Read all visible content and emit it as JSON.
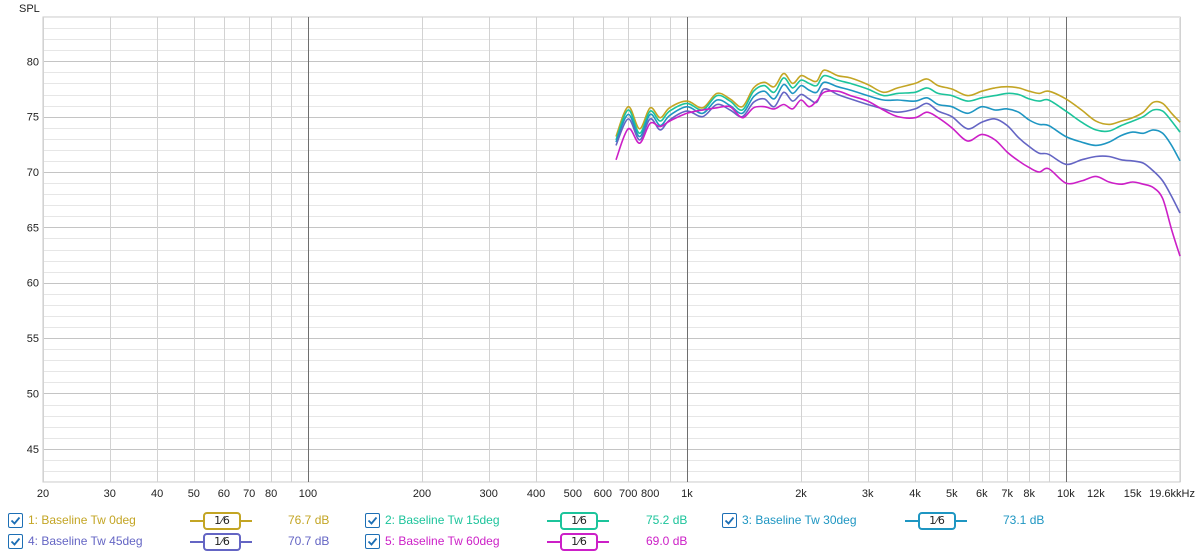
{
  "chart_data": {
    "type": "line",
    "ylabel": "SPL",
    "xlabel_unit": "kHz",
    "x_scale": "log",
    "xlim": [
      20,
      20000
    ],
    "ylim": [
      42,
      84
    ],
    "y_ticks": [
      45,
      50,
      55,
      60,
      65,
      70,
      75,
      80
    ],
    "y_tick_labels": [
      "45",
      "50",
      "55",
      "60",
      "65",
      "70",
      "75",
      "80"
    ],
    "x_ticks": [
      20,
      30,
      40,
      50,
      60,
      70,
      80,
      100,
      200,
      300,
      400,
      500,
      600,
      700,
      800,
      1000,
      2000,
      3000,
      4000,
      5000,
      6000,
      7000,
      8000,
      10000,
      12000,
      15000,
      19600
    ],
    "x_tick_labels": [
      "20",
      "30",
      "40",
      "50",
      "60",
      "70",
      "80",
      "100",
      "200",
      "300",
      "400",
      "500",
      "600",
      "700",
      "800",
      "1k",
      "2k",
      "3k",
      "4k",
      "5k",
      "6k",
      "7k",
      "8k",
      "10k",
      "12k",
      "15k",
      "19.6k"
    ],
    "grid": true,
    "x": [
      650,
      700,
      750,
      800,
      850,
      900,
      1000,
      1100,
      1200,
      1300,
      1400,
      1500,
      1600,
      1700,
      1800,
      1900,
      2000,
      2100,
      2200,
      2300,
      2500,
      2700,
      3000,
      3300,
      3600,
      4000,
      4300,
      4600,
      5000,
      5500,
      6000,
      6500,
      7000,
      7500,
      8000,
      8500,
      9000,
      10000,
      11000,
      12000,
      13000,
      14000,
      15000,
      16000,
      17000,
      18000,
      19000,
      20000
    ],
    "series": [
      {
        "name": "1: Baseline Tw 0deg",
        "color": "#c3a524",
        "values": [
          73.2,
          75.9,
          73.9,
          75.8,
          74.9,
          75.8,
          76.4,
          75.8,
          77.1,
          76.6,
          75.9,
          77.6,
          78.1,
          77.7,
          78.9,
          78.0,
          78.7,
          78.4,
          78.2,
          79.2,
          78.7,
          78.5,
          77.9,
          77.2,
          77.6,
          78.0,
          78.4,
          77.8,
          77.5,
          76.9,
          77.3,
          77.6,
          77.7,
          77.6,
          77.3,
          77.1,
          77.3,
          76.6,
          75.6,
          74.6,
          74.3,
          74.6,
          74.9,
          75.4,
          76.3,
          76.2,
          75.3,
          74.5
        ]
      },
      {
        "name": "2: Baseline Tw 15deg",
        "color": "#1cc49b",
        "values": [
          72.9,
          75.6,
          73.5,
          75.5,
          74.6,
          75.5,
          76.2,
          75.6,
          76.9,
          76.4,
          75.6,
          77.3,
          77.8,
          77.2,
          78.5,
          77.6,
          78.3,
          78.0,
          77.8,
          78.7,
          78.3,
          78.0,
          77.5,
          76.9,
          77.1,
          77.2,
          77.6,
          77.1,
          76.9,
          76.4,
          76.7,
          76.9,
          77.1,
          77.0,
          76.6,
          76.4,
          76.5,
          75.5,
          74.5,
          73.8,
          73.7,
          74.2,
          74.6,
          75.0,
          75.6,
          75.5,
          74.6,
          73.6
        ]
      },
      {
        "name": "3: Baseline Tw 30deg",
        "color": "#1e96c2",
        "values": [
          72.7,
          75.2,
          73.2,
          75.2,
          74.2,
          75.1,
          75.9,
          75.3,
          76.5,
          76.0,
          75.3,
          76.8,
          77.3,
          76.6,
          77.9,
          77.1,
          77.8,
          77.4,
          77.2,
          78.1,
          77.7,
          77.4,
          76.9,
          76.5,
          76.5,
          76.4,
          76.7,
          76.1,
          75.9,
          75.3,
          75.9,
          75.6,
          75.7,
          75.4,
          74.7,
          74.3,
          74.2,
          73.2,
          72.7,
          72.4,
          72.7,
          73.3,
          73.6,
          73.5,
          73.8,
          73.5,
          72.4,
          71.0
        ]
      },
      {
        "name": "4: Baseline Tw 45deg",
        "color": "#6465c4",
        "values": [
          72.4,
          74.8,
          72.9,
          74.8,
          73.8,
          74.7,
          75.5,
          75.0,
          76.1,
          75.6,
          75.0,
          76.3,
          76.6,
          75.9,
          77.2,
          76.4,
          77.0,
          76.6,
          76.3,
          77.5,
          77.0,
          76.6,
          76.1,
          75.7,
          75.4,
          75.7,
          76.2,
          75.5,
          75.0,
          73.9,
          74.5,
          74.8,
          74.2,
          73.1,
          72.3,
          71.7,
          71.6,
          70.7,
          71.1,
          71.4,
          71.4,
          71.1,
          71.0,
          70.8,
          70.1,
          69.2,
          67.8,
          66.3
        ]
      },
      {
        "name": "5: Baseline Tw 60deg",
        "color": "#cc1fc7",
        "values": [
          71.1,
          73.9,
          72.6,
          74.4,
          74.1,
          74.6,
          75.3,
          75.6,
          75.8,
          75.9,
          74.9,
          75.8,
          75.9,
          75.7,
          76.1,
          75.7,
          76.5,
          75.9,
          76.4,
          77.2,
          77.3,
          76.9,
          76.4,
          75.6,
          75.0,
          74.9,
          75.4,
          74.9,
          74.0,
          72.8,
          73.4,
          72.9,
          71.8,
          71.0,
          70.4,
          70.0,
          70.3,
          69.0,
          69.2,
          69.6,
          69.1,
          68.9,
          69.1,
          68.9,
          68.6,
          67.6,
          64.8,
          62.4
        ]
      }
    ]
  },
  "legend": {
    "items": [
      {
        "label": "1: Baseline Tw 0deg",
        "smoothing": "1⁄6",
        "value": "76.7 dB",
        "color": "#c3a524"
      },
      {
        "label": "2: Baseline Tw 15deg",
        "smoothing": "1⁄6",
        "value": "75.2 dB",
        "color": "#1cc49b"
      },
      {
        "label": "3: Baseline Tw 30deg",
        "smoothing": "1⁄6",
        "value": "73.1 dB",
        "color": "#1e96c2"
      },
      {
        "label": "4: Baseline Tw 45deg",
        "smoothing": "1⁄6",
        "value": "70.7 dB",
        "color": "#6465c4"
      },
      {
        "label": "5: Baseline Tw 60deg",
        "smoothing": "1⁄6",
        "value": "69.0 dB",
        "color": "#cc1fc7"
      }
    ]
  }
}
